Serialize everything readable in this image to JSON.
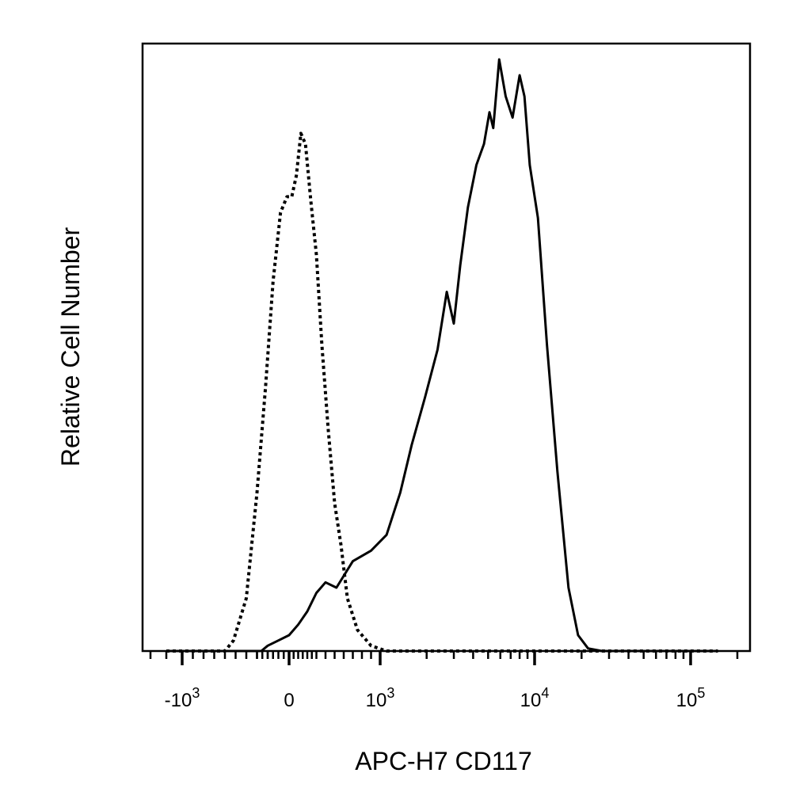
{
  "chart_data": {
    "type": "line",
    "chart_kind": "flow cytometry histogram overlay",
    "xlabel": "APC-H7 CD117",
    "ylabel": "Relative Cell Number",
    "x_scale": "biexponential (log above zero, linear near zero)",
    "xlim": [
      -3000,
      200000
    ],
    "ylim": [
      0,
      1.15
    ],
    "grid": false,
    "legend": "none",
    "x_ticks": [
      {
        "value": -1000,
        "base": "-10",
        "exp": "3"
      },
      {
        "value": 0,
        "base": "0",
        "exp": ""
      },
      {
        "value": 1000,
        "base": "10",
        "exp": "3"
      },
      {
        "value": 10000,
        "base": "10",
        "exp": "4"
      },
      {
        "value": 100000,
        "base": "10",
        "exp": "5"
      }
    ],
    "series": [
      {
        "style": "dotted",
        "color": "#000000",
        "points": [
          [
            -2000,
            0.0
          ],
          [
            -600,
            0.0
          ],
          [
            -520,
            0.02
          ],
          [
            -400,
            0.1
          ],
          [
            -300,
            0.3
          ],
          [
            -220,
            0.5
          ],
          [
            -150,
            0.7
          ],
          [
            -80,
            0.83
          ],
          [
            -20,
            0.86
          ],
          [
            30,
            0.86
          ],
          [
            80,
            0.9
          ],
          [
            130,
            0.98
          ],
          [
            180,
            0.96
          ],
          [
            240,
            0.85
          ],
          [
            300,
            0.75
          ],
          [
            360,
            0.58
          ],
          [
            430,
            0.42
          ],
          [
            500,
            0.28
          ],
          [
            570,
            0.2
          ],
          [
            640,
            0.1
          ],
          [
            750,
            0.04
          ],
          [
            900,
            0.01
          ],
          [
            1100,
            0.0
          ],
          [
            1500,
            0.0
          ],
          [
            150000,
            0.0
          ]
        ]
      },
      {
        "style": "solid",
        "color": "#000000",
        "points": [
          [
            -2000,
            0.0
          ],
          [
            -260,
            0.0
          ],
          [
            -200,
            0.01
          ],
          [
            -100,
            0.02
          ],
          [
            0,
            0.03
          ],
          [
            100,
            0.05
          ],
          [
            200,
            0.075
          ],
          [
            300,
            0.11
          ],
          [
            400,
            0.13
          ],
          [
            520,
            0.12
          ],
          [
            700,
            0.17
          ],
          [
            900,
            0.19
          ],
          [
            1100,
            0.22
          ],
          [
            1350,
            0.3
          ],
          [
            1600,
            0.39
          ],
          [
            1950,
            0.48
          ],
          [
            2350,
            0.57
          ],
          [
            2700,
            0.68
          ],
          [
            3000,
            0.62
          ],
          [
            3300,
            0.73
          ],
          [
            3700,
            0.84
          ],
          [
            4200,
            0.92
          ],
          [
            4700,
            0.96
          ],
          [
            5100,
            1.02
          ],
          [
            5400,
            0.99
          ],
          [
            5900,
            1.12
          ],
          [
            6500,
            1.05
          ],
          [
            7200,
            1.01
          ],
          [
            8000,
            1.09
          ],
          [
            8600,
            1.05
          ],
          [
            9300,
            0.92
          ],
          [
            10500,
            0.82
          ],
          [
            12000,
            0.58
          ],
          [
            14000,
            0.34
          ],
          [
            16500,
            0.12
          ],
          [
            19000,
            0.03
          ],
          [
            22000,
            0.005
          ],
          [
            27000,
            0.0
          ],
          [
            150000,
            0.0
          ]
        ]
      }
    ]
  }
}
